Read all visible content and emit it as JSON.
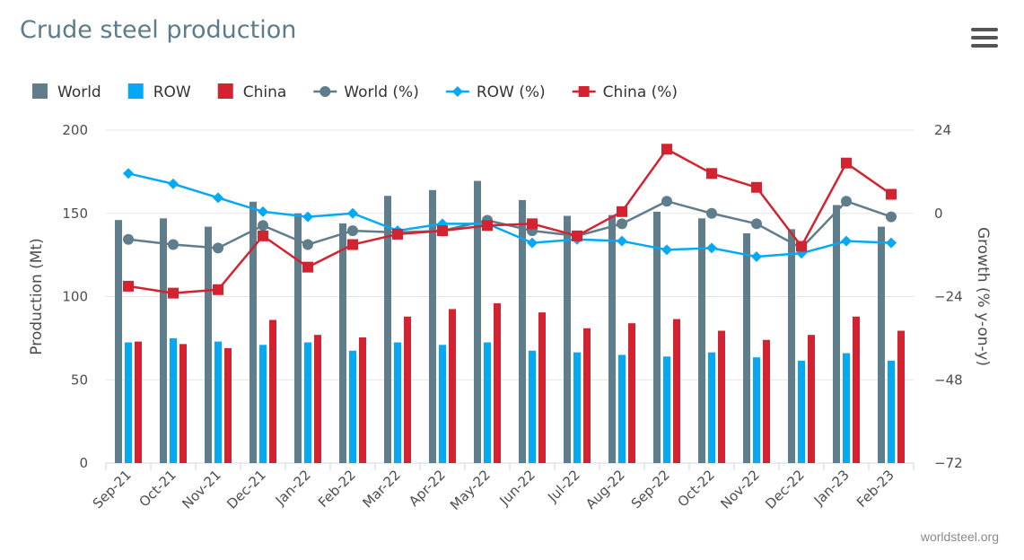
{
  "title": "Crude steel production",
  "credit": "worldsteel.org",
  "colors": {
    "world": "#607d8b",
    "row": "#03a9f4",
    "china": "#d32330",
    "grid": "#e6e6e6",
    "axis": "#ccd6eb"
  },
  "chart_data": {
    "type": "bar",
    "title": "Crude steel production",
    "categories": [
      "Sep-21",
      "Oct-21",
      "Nov-21",
      "Dec-21",
      "Jan-22",
      "Feb-22",
      "Mar-22",
      "Apr-22",
      "May-22",
      "Jun-22",
      "Jul-22",
      "Aug-22",
      "Sep-22",
      "Oct-22",
      "Nov-22",
      "Dec-22",
      "Jan-23",
      "Feb-23"
    ],
    "y_left": {
      "label": "Production (Mt)",
      "range": [
        0,
        200
      ],
      "ticks": [
        "0",
        "50",
        "100",
        "150",
        "200"
      ]
    },
    "y_right": {
      "label": "Growth (% y-on-y)",
      "range": [
        -72,
        24
      ],
      "ticks": [
        "−72",
        "−48",
        "−24",
        "0",
        "24"
      ]
    },
    "grid": true,
    "legend_position": "top-left",
    "series": [
      {
        "name": "World",
        "kind": "bar",
        "axis": "left",
        "color": "#607d8b",
        "values": [
          146,
          147,
          142,
          157,
          150,
          144,
          160.5,
          164,
          169.5,
          158,
          148.5,
          149,
          151,
          147,
          138,
          140.5,
          155,
          142
        ]
      },
      {
        "name": "ROW",
        "kind": "bar",
        "axis": "left",
        "color": "#03a9f4",
        "values": [
          72.5,
          75,
          73,
          71,
          72.5,
          67.5,
          72.5,
          71,
          72.5,
          67.5,
          66.5,
          65,
          64,
          66.5,
          63.5,
          61.5,
          66,
          61.5
        ]
      },
      {
        "name": "China",
        "kind": "bar",
        "axis": "left",
        "color": "#d32330",
        "values": [
          73,
          71.5,
          69,
          86,
          77,
          75.5,
          88,
          92.5,
          96,
          90.5,
          81,
          84,
          86.5,
          79.5,
          74,
          77,
          88,
          79.5
        ]
      },
      {
        "name": "World (%)",
        "kind": "line",
        "marker": "circle",
        "axis": "right",
        "color": "#607d8b",
        "values": [
          -7.5,
          -9,
          -10,
          -3.5,
          -9,
          -5,
          -5.5,
          -5,
          -2,
          -5,
          -6.5,
          -3,
          3.5,
          0,
          -3,
          -10,
          3.5,
          -1
        ]
      },
      {
        "name": "ROW (%)",
        "kind": "line",
        "marker": "diamond",
        "axis": "right",
        "color": "#03a9f4",
        "values": [
          11.5,
          8.5,
          4.5,
          0.5,
          -1,
          0,
          -5,
          -3,
          -3,
          -8.5,
          -7.5,
          -8,
          -10.5,
          -10,
          -12.5,
          -11.5,
          -8,
          -8.5
        ]
      },
      {
        "name": "China (%)",
        "kind": "line",
        "marker": "square",
        "axis": "right",
        "color": "#d32330",
        "values": [
          -21,
          -23,
          -22,
          -6.5,
          -15.5,
          -9,
          -6,
          -5,
          -3.5,
          -3,
          -6.5,
          0.5,
          18.5,
          11.5,
          7.5,
          -9.5,
          14.5,
          5.5
        ]
      }
    ]
  }
}
